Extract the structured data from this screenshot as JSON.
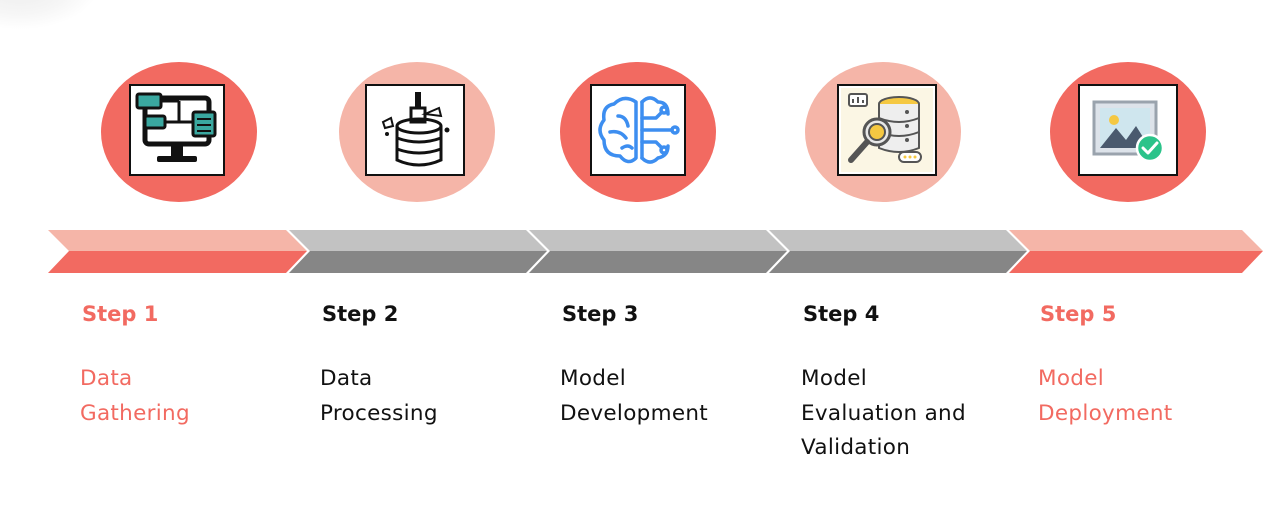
{
  "colors": {
    "accent": "#f26a61",
    "accent_light": "#f5b5a8",
    "gray_light": "#c2c2c2",
    "gray_dark": "#868686",
    "text_dark": "#111111"
  },
  "steps": [
    {
      "label": "Step 1",
      "title": "Data\nGathering",
      "icon": "network-monitor-icon",
      "highlighted": true
    },
    {
      "label": "Step 2",
      "title": "Data\nProcessing",
      "icon": "database-brush-icon",
      "highlighted": false
    },
    {
      "label": "Step 3",
      "title": "Model\nDevelopment",
      "icon": "brain-circuit-icon",
      "highlighted": false
    },
    {
      "label": "Step 4",
      "title": "Model\nEvaluation and\nValidation",
      "icon": "database-magnifier-icon",
      "highlighted": false
    },
    {
      "label": "Step 5",
      "title": "Model\nDeployment",
      "icon": "image-check-icon",
      "highlighted": true
    }
  ]
}
